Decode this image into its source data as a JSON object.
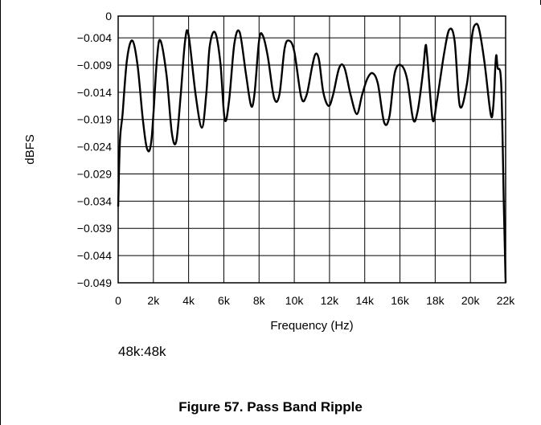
{
  "chart_data": {
    "type": "line",
    "xlabel": "Frequency (Hz)",
    "ylabel": "dBFS",
    "xlim": [
      0,
      22000
    ],
    "ylim": [
      -0.049,
      0
    ],
    "x_ticks": [
      0,
      2000,
      4000,
      6000,
      8000,
      10000,
      12000,
      14000,
      16000,
      18000,
      20000,
      22000
    ],
    "x_tick_labels": [
      "0",
      "2k",
      "4k",
      "6k",
      "8k",
      "10k",
      "12k",
      "14k",
      "16k",
      "18k",
      "20k",
      "22k"
    ],
    "y_ticks": [
      0,
      -0.004,
      -0.009,
      -0.014,
      -0.019,
      -0.024,
      -0.029,
      -0.034,
      -0.039,
      -0.044,
      -0.049
    ],
    "y_tick_labels": [
      "0",
      "−0.004",
      "−0.009",
      "−0.014",
      "−0.019",
      "−0.024",
      "−0.029",
      "−0.034",
      "−0.039",
      "−0.044",
      "−0.049"
    ],
    "grid": true,
    "series": [
      {
        "x": [
          0,
          100,
          250,
          500,
          800,
          1100,
          1400,
          1650,
          1900,
          2200,
          2400,
          2750,
          3050,
          3300,
          3550,
          3800,
          4000,
          4400,
          4750,
          5000,
          5200,
          5500,
          5800,
          6050,
          6300,
          6600,
          6900,
          7250,
          7550,
          7750,
          8000,
          8200,
          8500,
          8850,
          9150,
          9450,
          9700,
          10000,
          10400,
          10700,
          11000,
          11200,
          11400,
          11650,
          11950,
          12200,
          12550,
          12850,
          13200,
          13550,
          13850,
          14150,
          14450,
          14750,
          15100,
          15400,
          15700,
          16050,
          16400,
          16750,
          17000,
          17300,
          17450,
          17550,
          17850,
          18100,
          18500,
          18800,
          19100,
          19400,
          19800,
          20100,
          20300,
          20500,
          20800,
          21150,
          21300,
          21450,
          21550,
          21750,
          21900,
          22000
        ],
        "y": [
          -0.035,
          -0.023,
          -0.018,
          -0.008,
          -0.0045,
          -0.009,
          -0.019,
          -0.0245,
          -0.0225,
          -0.008,
          -0.0045,
          -0.011,
          -0.0215,
          -0.023,
          -0.0145,
          -0.0045,
          -0.0035,
          -0.0145,
          -0.0205,
          -0.0145,
          -0.0055,
          -0.003,
          -0.0085,
          -0.019,
          -0.0155,
          -0.005,
          -0.003,
          -0.0105,
          -0.0165,
          -0.014,
          -0.0045,
          -0.0035,
          -0.0075,
          -0.015,
          -0.0145,
          -0.006,
          -0.0045,
          -0.0065,
          -0.015,
          -0.0145,
          -0.0095,
          -0.007,
          -0.008,
          -0.014,
          -0.0165,
          -0.0145,
          -0.0095,
          -0.0095,
          -0.0145,
          -0.018,
          -0.0145,
          -0.0115,
          -0.0105,
          -0.0125,
          -0.0195,
          -0.0185,
          -0.0105,
          -0.009,
          -0.0115,
          -0.019,
          -0.0175,
          -0.0105,
          -0.0055,
          -0.0075,
          -0.019,
          -0.0155,
          -0.007,
          -0.0025,
          -0.0045,
          -0.0165,
          -0.0125,
          -0.0035,
          -0.0015,
          -0.0025,
          -0.0085,
          -0.018,
          -0.0165,
          -0.0075,
          -0.0095,
          -0.0125,
          -0.035,
          -0.049
        ]
      }
    ]
  },
  "note_text": "48k:48k",
  "caption": "Figure 57. Pass Band Ripple",
  "colors": {
    "line": "#000000",
    "grid": "#000000",
    "background": "#ffffff"
  }
}
